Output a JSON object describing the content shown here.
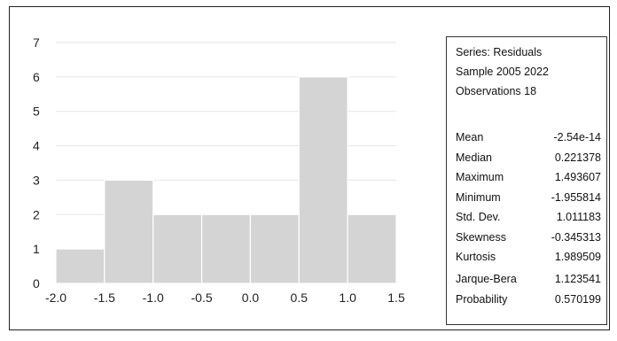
{
  "chart_data": {
    "type": "bar",
    "subtype": "histogram",
    "bin_edges": [
      -2.0,
      -1.5,
      -1.0,
      -0.5,
      0.0,
      0.5,
      1.0,
      1.5
    ],
    "values": [
      1,
      3,
      2,
      2,
      2,
      6,
      2
    ],
    "x_ticks": [
      "-2.0",
      "-1.5",
      "-1.0",
      "-0.5",
      "0.0",
      "0.5",
      "1.0",
      "1.5"
    ],
    "y_ticks": [
      "0",
      "1",
      "2",
      "3",
      "4",
      "5",
      "6",
      "7"
    ],
    "xlim": [
      -2.0,
      1.5
    ],
    "ylim": [
      0,
      7
    ],
    "grid": "horizontal",
    "title": "",
    "xlabel": "",
    "ylabel": "",
    "bar_color": "#d4d4d4",
    "bar_edge_color": "#ffffff",
    "grid_color": "#e6e6e6"
  },
  "stats": {
    "header": [
      "Series: Residuals",
      "Sample 2005 2022",
      "Observations 18"
    ],
    "rows": [
      {
        "label": "Mean",
        "value": "-2.54e-14"
      },
      {
        "label": "Median",
        "value": "0.221378"
      },
      {
        "label": "Maximum",
        "value": "1.493607"
      },
      {
        "label": "Minimum",
        "value": "-1.955814"
      },
      {
        "label": "Std. Dev.",
        "value": "1.011183"
      },
      {
        "label": "Skewness",
        "value": "-0.345313"
      },
      {
        "label": "Kurtosis",
        "value": "1.989509"
      }
    ],
    "jb_rows": [
      {
        "label": "Jarque-Bera",
        "value": "1.123541"
      },
      {
        "label": "Probability",
        "value": "0.570199"
      }
    ]
  }
}
